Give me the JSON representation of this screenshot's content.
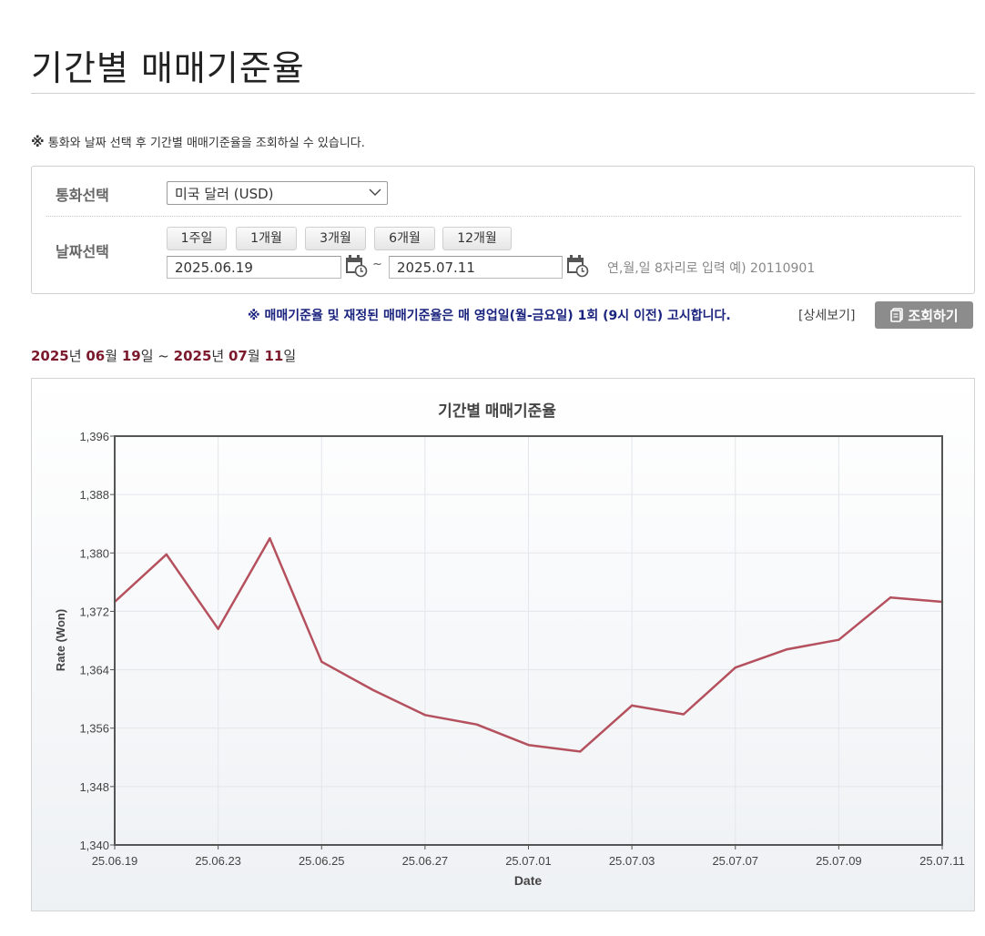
{
  "page": {
    "title": "기간별 매매기준율",
    "notice_mark": "※",
    "notice_text": "통화와 날짜 선택 후 기간별 매매기준율을 조회하실 수 있습니다."
  },
  "search": {
    "currency_label": "통화선택",
    "currency_value": "미국 달러 (USD)",
    "date_label": "날짜선택",
    "periods": [
      "1주일",
      "1개월",
      "3개월",
      "6개월",
      "12개월"
    ],
    "start_date": "2025.06.19",
    "end_date": "2025.07.11",
    "tilde": "~",
    "date_hint": "연,월,일 8자리로 입력 예) 20110901"
  },
  "announcement": "※ 매매기준율 및 재정된 매매기준율은 매 영업일(월-금요일) 1회 (9시 이전) 고시합니다.",
  "detail_link": "[상세보기]",
  "query_button": "조회하기",
  "range": {
    "start_year": "2025",
    "start_month": "06",
    "start_day": "19",
    "end_year": "2025",
    "end_month": "07",
    "end_day": "11",
    "year_suffix": "년",
    "month_suffix": "월",
    "day_suffix": "일",
    "sep": "~"
  },
  "colors": {
    "line": "#b5515e",
    "announce": "#1a237e",
    "range_num": "#7b1a2c"
  },
  "chart_data": {
    "type": "line",
    "title": "기간별 매매기준율",
    "xlabel": "Date",
    "ylabel": "Rate (Won)",
    "ylim": [
      1340,
      1396
    ],
    "yticks": [
      "1,340",
      "1,348",
      "1,356",
      "1,364",
      "1,372",
      "1,380",
      "1,388",
      "1,396"
    ],
    "xticks": [
      "25.06.19",
      "25.06.23",
      "25.06.25",
      "25.06.27",
      "25.07.01",
      "25.07.03",
      "25.07.07",
      "25.07.09",
      "25.07.11"
    ],
    "x": [
      "25.06.19",
      "25.06.20",
      "25.06.23",
      "25.06.24",
      "25.06.25",
      "25.06.26",
      "25.06.27",
      "25.06.30",
      "25.07.01",
      "25.07.02",
      "25.07.03",
      "25.07.04",
      "25.07.07",
      "25.07.08",
      "25.07.09",
      "25.07.10",
      "25.07.11"
    ],
    "series": [
      {
        "values": [
          1373.3,
          1379.8,
          1369.6,
          1382.0,
          1365.1,
          1361.2,
          1357.8,
          1356.5,
          1353.7,
          1352.8,
          1359.1,
          1357.9,
          1364.3,
          1366.8,
          1368.1,
          1373.9,
          1373.3
        ]
      }
    ],
    "grid": true,
    "legend": "none"
  }
}
